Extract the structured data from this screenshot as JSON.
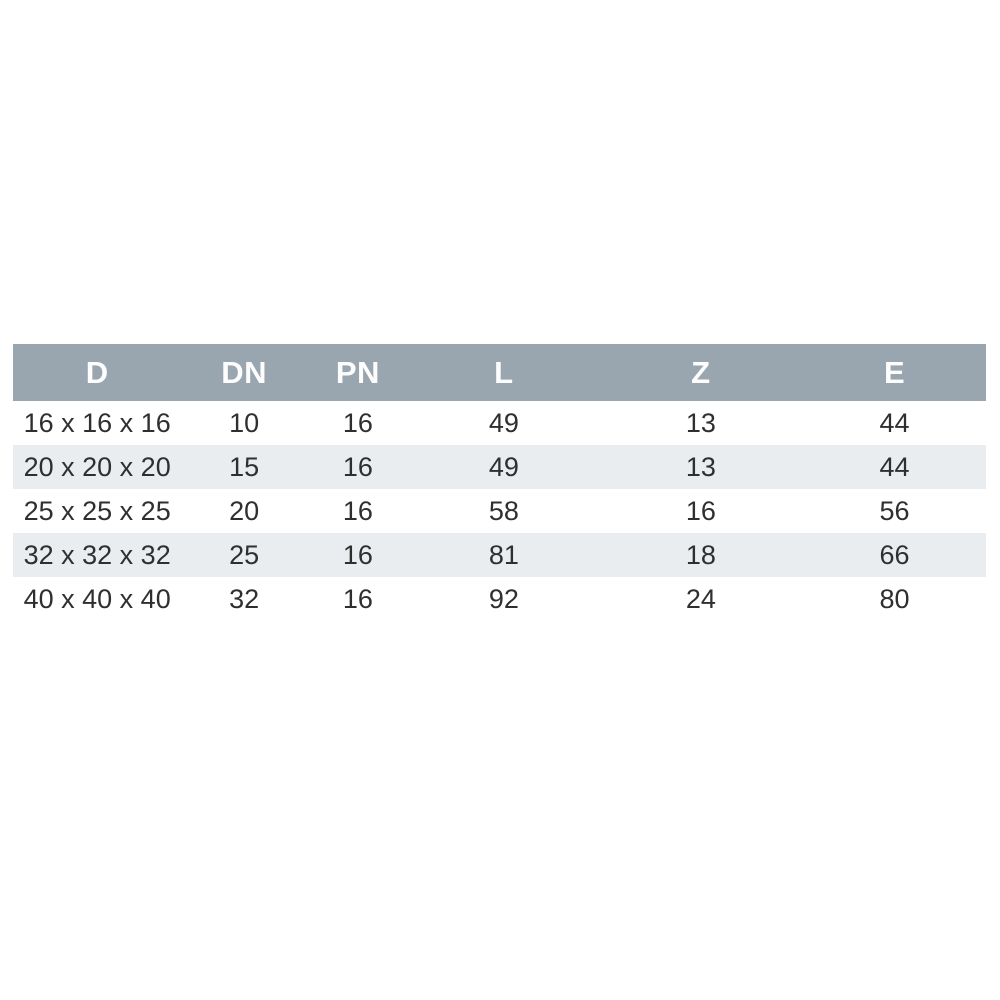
{
  "colors": {
    "header_bg": "#9aa6af",
    "header_text": "#fdfdfd",
    "stripe_bg": "#e9edf0",
    "row_bg": "#ffffff",
    "cell_text": "#2f2f2f",
    "page_bg": "#ffffff"
  },
  "table": {
    "columns": [
      "D",
      "DN",
      "PN",
      "L",
      "Z",
      "E"
    ],
    "rows": [
      [
        "16 x 16 x 16",
        "10",
        "16",
        "49",
        "13",
        "44"
      ],
      [
        "20 x 20 x 20",
        "15",
        "16",
        "49",
        "13",
        "44"
      ],
      [
        "25 x 25 x 25",
        "20",
        "16",
        "58",
        "16",
        "56"
      ],
      [
        "32 x 32 x 32",
        "25",
        "16",
        "81",
        "18",
        "66"
      ],
      [
        "40 x 40 x 40",
        "32",
        "16",
        "92",
        "24",
        "80"
      ]
    ]
  },
  "chart_data": {
    "type": "table",
    "title": "",
    "columns": [
      "D",
      "DN",
      "PN",
      "L",
      "Z",
      "E"
    ],
    "rows": [
      {
        "D": "16 x 16 x 16",
        "DN": 10,
        "PN": 16,
        "L": 49,
        "Z": 13,
        "E": 44
      },
      {
        "D": "20 x 20 x 20",
        "DN": 15,
        "PN": 16,
        "L": 49,
        "Z": 13,
        "E": 44
      },
      {
        "D": "25 x 25 x 25",
        "DN": 20,
        "PN": 16,
        "L": 58,
        "Z": 16,
        "E": 56
      },
      {
        "D": "32 x 32 x 32",
        "DN": 25,
        "PN": 16,
        "L": 81,
        "Z": 18,
        "E": 66
      },
      {
        "D": "40 x 40 x 40",
        "DN": 32,
        "PN": 16,
        "L": 92,
        "Z": 24,
        "E": 80
      }
    ],
    "layout": {
      "zebra_striping": true,
      "header_style": "solid-band",
      "alignment": "center"
    }
  }
}
